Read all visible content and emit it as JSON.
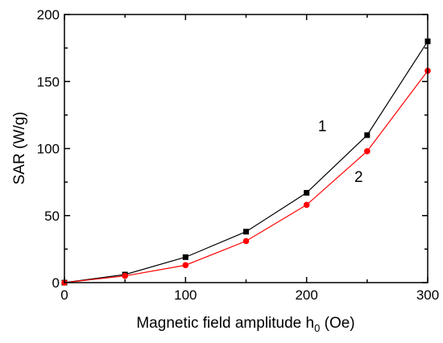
{
  "chart_data": {
    "type": "line",
    "xlabel_main": "Magnetic field amplitude h",
    "xlabel_sub": "0",
    "xlabel_unit": " (Oe)",
    "ylabel": "SAR (W/g)",
    "xlim": [
      0,
      300
    ],
    "ylim": [
      0,
      200
    ],
    "xticks": [
      0,
      100,
      200,
      300
    ],
    "yticks": [
      0,
      50,
      100,
      150,
      200
    ],
    "grid": false,
    "series": [
      {
        "label": "1",
        "color": "#000000",
        "marker": "square",
        "x": [
          0,
          50,
          100,
          150,
          200,
          250,
          300
        ],
        "y": [
          0,
          6,
          19,
          38,
          67,
          110,
          180
        ]
      },
      {
        "label": "2",
        "color": "#ff0000",
        "marker": "circle",
        "x": [
          0,
          50,
          100,
          150,
          200,
          250,
          300
        ],
        "y": [
          0,
          5,
          13,
          31,
          58,
          98,
          158
        ]
      }
    ],
    "annotations": [
      {
        "text": "1",
        "x": 213,
        "y": 113
      },
      {
        "text": "2",
        "x": 243,
        "y": 75
      }
    ]
  }
}
